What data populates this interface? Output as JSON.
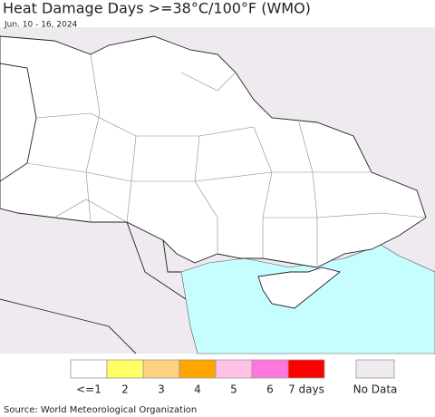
{
  "header": {
    "title": "Heat Damage Days >=38°C/100°F (WMO)",
    "subtitle": "Jun. 10 - 16, 2024"
  },
  "legend": {
    "items": [
      {
        "label": "<=1",
        "color": "#ffffff"
      },
      {
        "label": "2",
        "color": "#ffff66"
      },
      {
        "label": "3",
        "color": "#fdd17f"
      },
      {
        "label": "4",
        "color": "#ffa500"
      },
      {
        "label": "5",
        "color": "#ffc2e6"
      },
      {
        "label": "6",
        "color": "#ff77dd"
      },
      {
        "label": "7 days",
        "color": "#ff0000"
      }
    ],
    "no_data": {
      "label": "No Data",
      "color": "#eeeaee"
    }
  },
  "footer": {
    "source": "Source: World Meteorological Organization"
  }
}
